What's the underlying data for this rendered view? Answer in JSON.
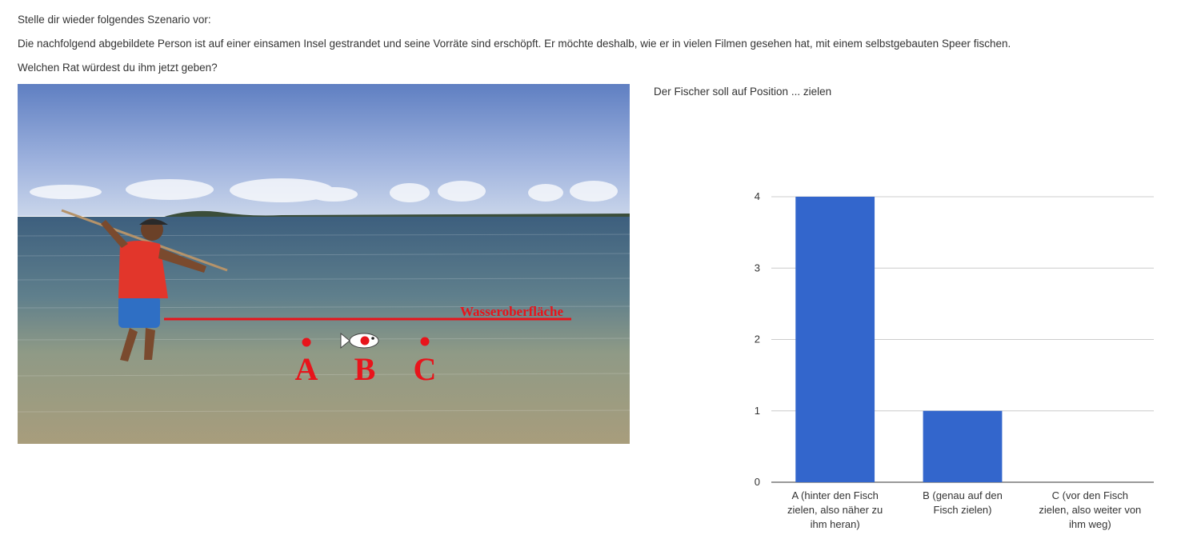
{
  "intro": {
    "line1": "Stelle dir wieder folgendes Szenario vor:",
    "line2": "Die nachfolgend abgebildete Person ist auf einer einsamen Insel gestrandet und seine Vorräte sind erschöpft. Er möchte deshalb, wie er in vielen Filmen gesehen hat, mit einem selbstgebauten Speer fischen.",
    "line3": "Welchen Rat würdest du ihm jetzt geben?"
  },
  "photo": {
    "surface_label": "Wasseroberfläche",
    "marker_a": "A",
    "marker_b": "B",
    "marker_c": "C"
  },
  "question": {
    "title": "Der Fischer soll auf Position ... zielen"
  },
  "colors": {
    "bar": "#3366cc",
    "grid": "#cccccc",
    "annotation_red": "#e8141b"
  },
  "chart_data": {
    "type": "bar",
    "categories": [
      "A (hinter den Fisch zielen, also näher zu ihm heran)",
      "B (genau auf den Fisch zielen)",
      "C (vor den Fisch zielen, also weiter von ihm weg)"
    ],
    "category_lines": [
      [
        "A (hinter den Fisch",
        "zielen, also näher zu",
        "ihm heran)"
      ],
      [
        "B (genau auf den",
        "Fisch zielen)"
      ],
      [
        "C (vor den Fisch",
        "zielen, also weiter von",
        "ihm weg)"
      ]
    ],
    "values": [
      4,
      1,
      0
    ],
    "yticks": [
      0,
      1,
      2,
      3,
      4
    ],
    "ylim": [
      0,
      4
    ],
    "title": "",
    "xlabel": "",
    "ylabel": "",
    "grid": true,
    "legend": "none"
  }
}
